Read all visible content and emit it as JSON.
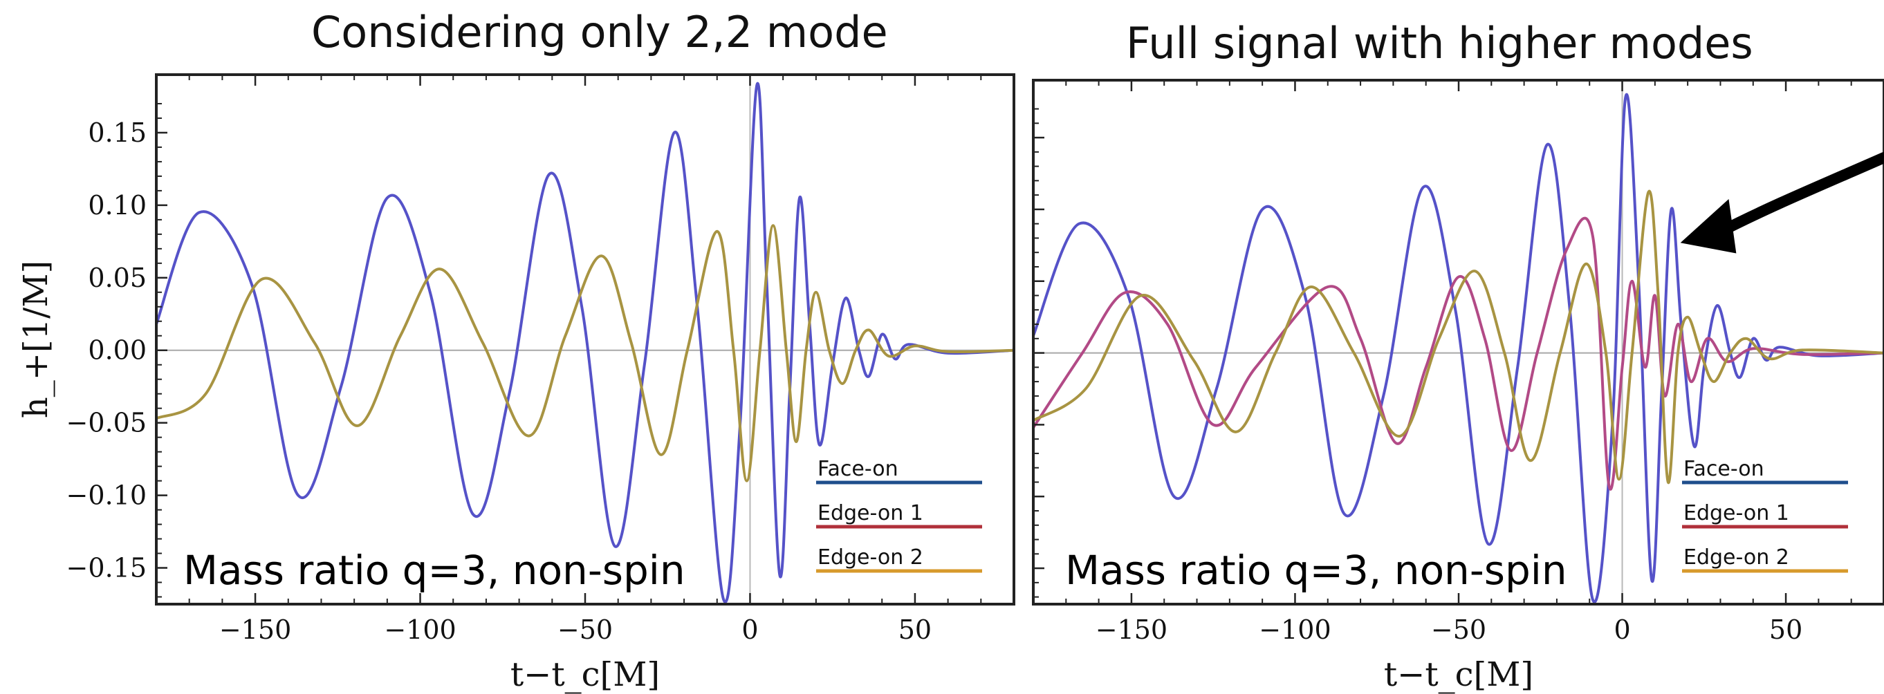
{
  "panels": {
    "left_title": "Considering only 2,2 mode",
    "right_title": "Full signal with higher modes"
  },
  "legend": {
    "items": [
      {
        "label": "Face-on",
        "color": "#1f4e8c"
      },
      {
        "label": "Edge-on 1",
        "color": "#b0303a"
      },
      {
        "label": "Edge-on 2",
        "color": "#d79a2b"
      }
    ]
  },
  "annotation": "Mass ratio q=3, non-spin",
  "colors": {
    "blue_wave": "#5552c8",
    "gold_wave": "#a89442",
    "magenta_wave": "#b24a86",
    "arrow": "#000000"
  },
  "chart_data": [
    {
      "type": "line",
      "title": "Considering only 2,2 mode",
      "xlabel": "t−t_c[M]",
      "ylabel": "h_+[1/M]",
      "xlim": [
        -180,
        80
      ],
      "ylim": [
        -0.175,
        0.19
      ],
      "x_ticks": [
        -150,
        -100,
        -50,
        0,
        50
      ],
      "x_tick_labels": [
        "−150",
        "−100",
        "−50",
        "0",
        "50"
      ],
      "y_ticks": [
        0.15,
        0.1,
        0.05,
        0.0,
        -0.05,
        -0.1,
        -0.15
      ],
      "y_tick_labels": [
        "0.15",
        "0.10",
        "0.05",
        "0.00",
        "−0.05",
        "−0.10",
        "−0.15"
      ],
      "series": [
        {
          "color": "#5552c8",
          "points": [
            [
              -180,
              0.018
            ],
            [
              -167,
              0.095
            ],
            [
              -151,
              0.045
            ],
            [
              -137,
              -0.1
            ],
            [
              -124,
              -0.025
            ],
            [
              -110,
              0.105
            ],
            [
              -97,
              0.04
            ],
            [
              -84,
              -0.113
            ],
            [
              -73,
              -0.03
            ],
            [
              -61,
              0.121
            ],
            [
              -51,
              0.03
            ],
            [
              -41,
              -0.135
            ],
            [
              -32,
              -0.01
            ],
            [
              -23,
              0.15
            ],
            [
              -16,
              0.03
            ],
            [
              -8,
              -0.172
            ],
            [
              -3,
              -0.05
            ],
            [
              2,
              0.182
            ],
            [
              5,
              0.05
            ],
            [
              9,
              -0.155
            ],
            [
              12,
              -0.03
            ],
            [
              15,
              0.105
            ],
            [
              18,
              0.02
            ],
            [
              21,
              -0.065
            ],
            [
              25,
              -0.01
            ],
            [
              29,
              0.036
            ],
            [
              33,
              0.0
            ],
            [
              36,
              -0.018
            ],
            [
              40,
              0.011
            ],
            [
              44,
              -0.006
            ],
            [
              48,
              0.004
            ],
            [
              60,
              -0.002
            ],
            [
              80,
              0.0
            ]
          ]
        },
        {
          "color": "#a89442",
          "points": [
            [
              -180,
              -0.047
            ],
            [
              -165,
              -0.03
            ],
            [
              -148,
              0.049
            ],
            [
              -132,
              0.005
            ],
            [
              -119,
              -0.052
            ],
            [
              -106,
              0.01
            ],
            [
              -94,
              0.056
            ],
            [
              -81,
              0.005
            ],
            [
              -67,
              -0.059
            ],
            [
              -56,
              0.01
            ],
            [
              -45,
              0.065
            ],
            [
              -36,
              0.005
            ],
            [
              -27,
              -0.072
            ],
            [
              -19,
              0.0
            ],
            [
              -10,
              0.082
            ],
            [
              -5,
              0.0
            ],
            [
              -1,
              -0.09
            ],
            [
              3,
              0.0
            ],
            [
              7,
              0.086
            ],
            [
              11,
              0.0
            ],
            [
              14,
              -0.063
            ],
            [
              17,
              0.0
            ],
            [
              20,
              0.04
            ],
            [
              24,
              0.0
            ],
            [
              28,
              -0.023
            ],
            [
              32,
              0.0
            ],
            [
              36,
              0.014
            ],
            [
              42,
              -0.004
            ],
            [
              50,
              0.003
            ],
            [
              60,
              -0.001
            ],
            [
              80,
              0.0
            ]
          ]
        }
      ]
    },
    {
      "type": "line",
      "title": "Full signal with higher modes",
      "xlabel": "t−t_c[M]",
      "ylabel": "",
      "xlim": [
        -180,
        80
      ],
      "ylim": [
        -0.175,
        0.19
      ],
      "x_ticks": [
        -150,
        -100,
        -50,
        0,
        50
      ],
      "x_tick_labels": [
        "−150",
        "−100",
        "−50",
        "0",
        "50"
      ],
      "series": [
        {
          "color": "#5552c8",
          "points": [
            [
              -180,
              0.012
            ],
            [
              -166,
              0.09
            ],
            [
              -151,
              0.04
            ],
            [
              -137,
              -0.1
            ],
            [
              -124,
              -0.025
            ],
            [
              -110,
              0.1
            ],
            [
              -97,
              0.04
            ],
            [
              -85,
              -0.112
            ],
            [
              -73,
              -0.03
            ],
            [
              -61,
              0.115
            ],
            [
              -51,
              0.03
            ],
            [
              -41,
              -0.133
            ],
            [
              -32,
              -0.01
            ],
            [
              -23,
              0.145
            ],
            [
              -16,
              0.03
            ],
            [
              -9,
              -0.172
            ],
            [
              -3,
              -0.05
            ],
            [
              1,
              0.178
            ],
            [
              5,
              0.05
            ],
            [
              9,
              -0.158
            ],
            [
              12,
              -0.03
            ],
            [
              15,
              0.1
            ],
            [
              18,
              0.02
            ],
            [
              22,
              -0.065
            ],
            [
              25,
              -0.01
            ],
            [
              29,
              0.033
            ],
            [
              33,
              0.0
            ],
            [
              36,
              -0.017
            ],
            [
              40,
              0.01
            ],
            [
              44,
              -0.005
            ],
            [
              48,
              0.004
            ],
            [
              60,
              -0.002
            ],
            [
              80,
              0.0
            ]
          ]
        },
        {
          "color": "#b24a86",
          "points": [
            [
              -180,
              -0.052
            ],
            [
              -165,
              0.0
            ],
            [
              -152,
              0.042
            ],
            [
              -139,
              0.02
            ],
            [
              -125,
              -0.05
            ],
            [
              -112,
              -0.01
            ],
            [
              -90,
              0.046
            ],
            [
              -80,
              0.01
            ],
            [
              -69,
              -0.063
            ],
            [
              -60,
              -0.01
            ],
            [
              -50,
              0.053
            ],
            [
              -42,
              0.01
            ],
            [
              -34,
              -0.068
            ],
            [
              -26,
              0.0
            ],
            [
              -17,
              0.072
            ],
            [
              -9,
              0.081
            ],
            [
              -4,
              -0.093
            ],
            [
              0,
              -0.01
            ],
            [
              3,
              0.05
            ],
            [
              7,
              -0.01
            ],
            [
              10,
              0.04
            ],
            [
              13,
              -0.03
            ],
            [
              17,
              0.02
            ],
            [
              21,
              -0.02
            ],
            [
              26,
              0.01
            ],
            [
              32,
              -0.006
            ],
            [
              40,
              0.003
            ],
            [
              55,
              -0.001
            ],
            [
              80,
              0.0
            ]
          ]
        },
        {
          "color": "#a89442",
          "points": [
            [
              -180,
              -0.047
            ],
            [
              -164,
              -0.025
            ],
            [
              -147,
              0.04
            ],
            [
              -131,
              -0.005
            ],
            [
              -118,
              -0.055
            ],
            [
              -106,
              0.0
            ],
            [
              -95,
              0.046
            ],
            [
              -82,
              0.0
            ],
            [
              -68,
              -0.058
            ],
            [
              -56,
              0.01
            ],
            [
              -45,
              0.057
            ],
            [
              -36,
              0.0
            ],
            [
              -28,
              -0.075
            ],
            [
              -19,
              0.0
            ],
            [
              -11,
              0.062
            ],
            [
              -5,
              0.0
            ],
            [
              -1,
              -0.088
            ],
            [
              3,
              0.0
            ],
            [
              8,
              0.112
            ],
            [
              11,
              0.04
            ],
            [
              14,
              -0.09
            ],
            [
              17,
              0.0
            ],
            [
              20,
              0.025
            ],
            [
              24,
              0.0
            ],
            [
              28,
              -0.02
            ],
            [
              33,
              0.0
            ],
            [
              38,
              0.01
            ],
            [
              45,
              -0.004
            ],
            [
              55,
              0.002
            ],
            [
              80,
              0.0
            ]
          ]
        }
      ]
    }
  ]
}
